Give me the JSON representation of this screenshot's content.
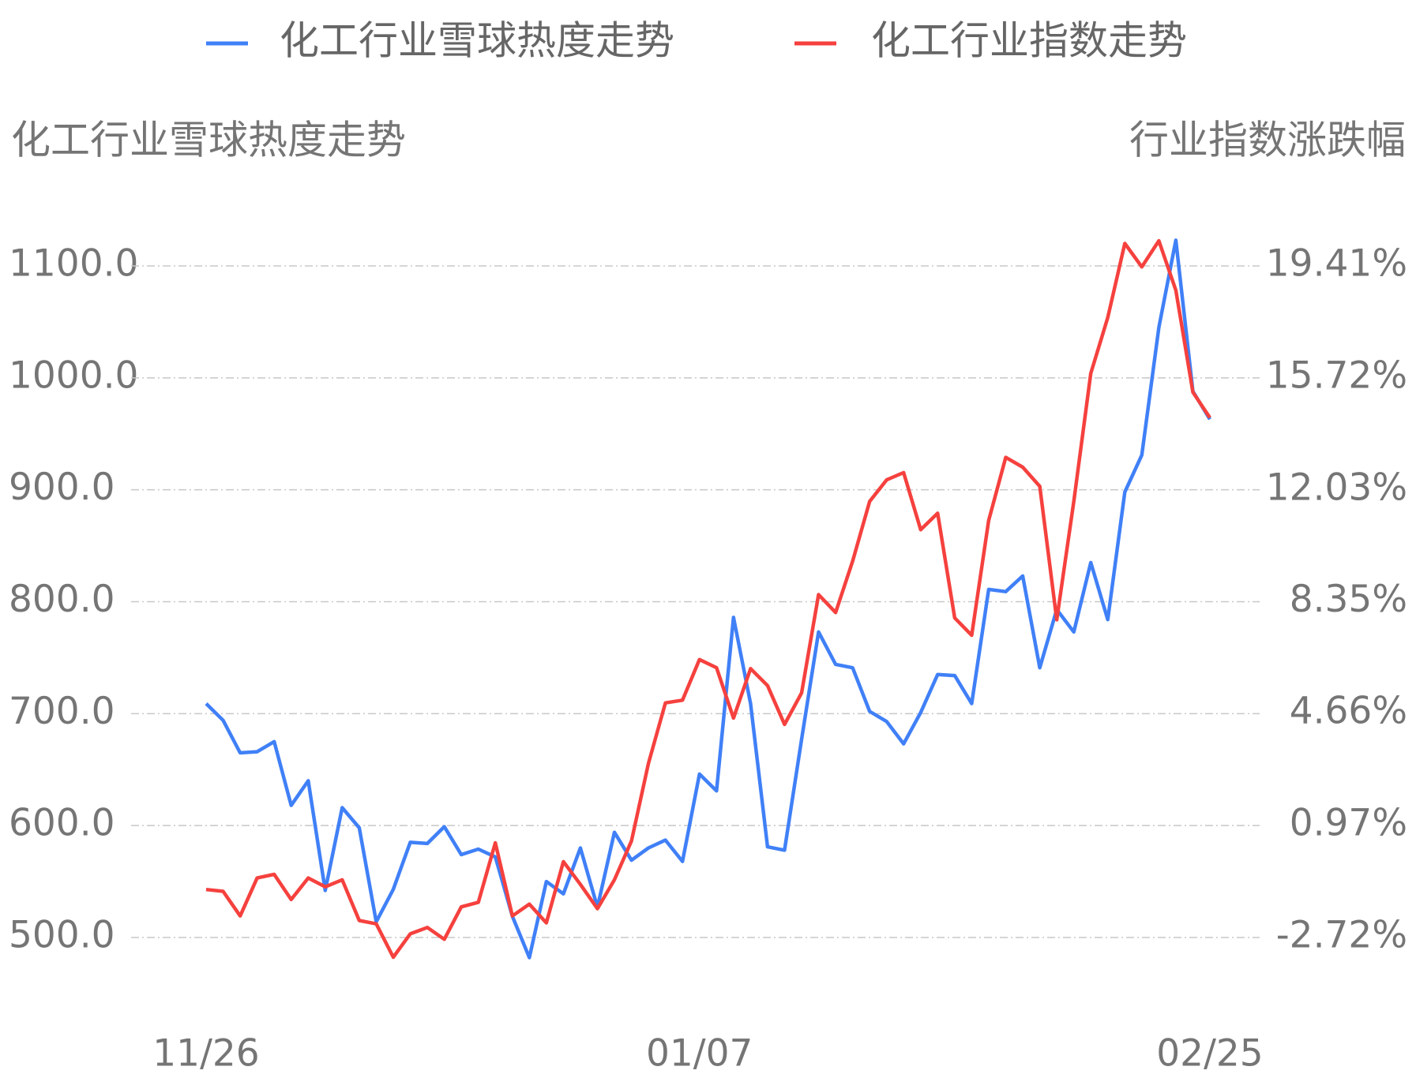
{
  "chart_data": {
    "type": "line",
    "y_title": "化工行业雪球热度走势",
    "y2_title": "行业指数涨跌幅",
    "categories": [
      "11/26",
      null,
      null,
      null,
      null,
      null,
      null,
      null,
      null,
      null,
      null,
      null,
      null,
      null,
      null,
      null,
      null,
      null,
      null,
      null,
      null,
      null,
      null,
      null,
      null,
      null,
      null,
      null,
      null,
      "01/07",
      null,
      null,
      null,
      null,
      null,
      null,
      null,
      null,
      null,
      null,
      null,
      null,
      null,
      null,
      null,
      null,
      null,
      null,
      null,
      null,
      null,
      null,
      null,
      null,
      null,
      null,
      null,
      null,
      null,
      "02/25"
    ],
    "series": [
      {
        "name": "化工行业雪球热度走势",
        "color": "#4080f7",
        "axis": "y",
        "values": [
          709,
          694,
          665,
          666,
          675,
          618,
          640,
          542,
          616,
          598,
          514,
          543,
          585,
          584,
          599,
          574,
          579,
          572,
          519,
          482,
          550,
          539,
          580,
          527,
          594,
          569,
          580,
          587,
          568,
          646,
          631,
          786,
          709,
          581,
          578,
          677,
          773,
          744,
          741,
          702,
          693,
          673,
          701,
          735,
          734,
          709,
          811,
          809,
          823,
          741,
          793,
          773,
          835,
          784,
          898,
          931,
          1045,
          1123,
          988,
          963
        ]
      },
      {
        "name": "化工行业指数走势",
        "color": "#f5413e",
        "axis": "y2",
        "values": [
          -1.14,
          -1.2,
          -2.01,
          -0.76,
          -0.64,
          -1.47,
          -0.76,
          -1.05,
          -0.82,
          -2.16,
          -2.27,
          -3.37,
          -2.6,
          -2.39,
          -2.78,
          -1.71,
          -1.56,
          0.4,
          -2.01,
          -1.62,
          -2.24,
          -0.22,
          -0.97,
          -1.77,
          -0.82,
          0.46,
          3.02,
          5.01,
          5.1,
          6.44,
          6.17,
          4.51,
          6.14,
          5.58,
          4.3,
          5.34,
          8.58,
          7.99,
          9.68,
          11.65,
          12.36,
          12.6,
          10.72,
          11.26,
          7.81,
          7.24,
          11.02,
          13.1,
          12.78,
          12.15,
          7.75,
          11.65,
          15.87,
          17.71,
          20.15,
          19.38,
          20.24,
          18.61,
          15.25,
          14.41
        ]
      }
    ],
    "ylim": [
      500,
      1100
    ],
    "yticks": [
      {
        "value": 500,
        "label": "500.0"
      },
      {
        "value": 600,
        "label": "600.0"
      },
      {
        "value": 700,
        "label": "700.0"
      },
      {
        "value": 800,
        "label": "800.0"
      },
      {
        "value": 900,
        "label": "900.0"
      },
      {
        "value": 1000,
        "label": "1000.0"
      },
      {
        "value": 1100,
        "label": "1100.0"
      }
    ],
    "y2lim": [
      -2.72,
      19.41
    ],
    "y2ticks": [
      {
        "value": -2.72,
        "label": "-2.72%"
      },
      {
        "value": 0.97,
        "label": "0.97%"
      },
      {
        "value": 4.66,
        "label": "4.66%"
      },
      {
        "value": 8.35,
        "label": "8.35%"
      },
      {
        "value": 12.03,
        "label": "12.03%"
      },
      {
        "value": 15.72,
        "label": "15.72%"
      },
      {
        "value": 19.41,
        "label": "19.41%"
      }
    ],
    "grid": true
  }
}
